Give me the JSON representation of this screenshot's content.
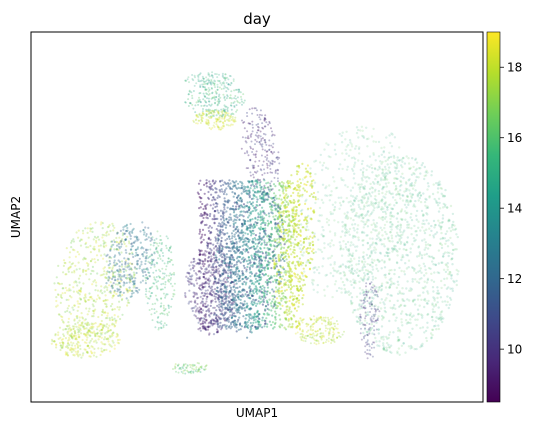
{
  "chart_data": {
    "type": "scatter",
    "title": "day",
    "xlabel": "UMAP1",
    "ylabel": "UMAP2",
    "colorbar": {
      "colormap": "viridis",
      "min": 8.5,
      "max": 19,
      "ticks": [
        10,
        12,
        14,
        16,
        18
      ]
    },
    "x_ticks_shown": false,
    "y_ticks_shown": false,
    "grid": false,
    "viridis_stops": [
      "#440154",
      "#482878",
      "#3e4989",
      "#31688e",
      "#26828e",
      "#1f9e89",
      "#35b779",
      "#6ece58",
      "#b5de2b",
      "#fde725"
    ]
  }
}
